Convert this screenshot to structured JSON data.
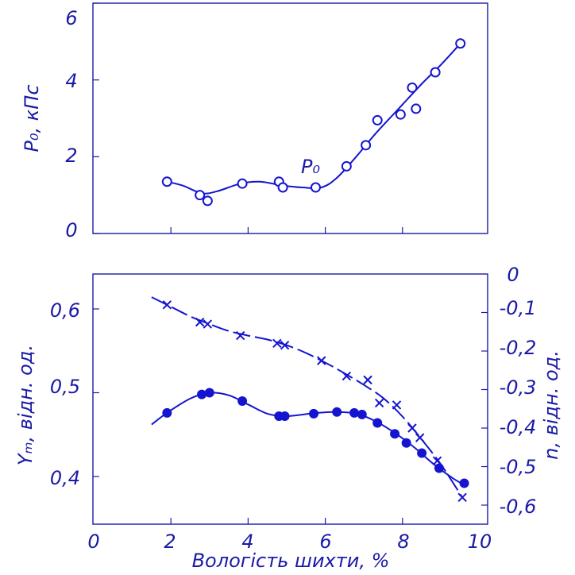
{
  "chart_data": [
    {
      "type": "line",
      "title": "",
      "xlabel": "",
      "ylabel": "P₀, кПс",
      "xlim": [
        0,
        10
      ],
      "ylim": [
        0,
        6
      ],
      "grid": false,
      "yticks": [
        "0",
        "2",
        "4",
        "6"
      ],
      "annotation": "P₀",
      "series": [
        {
          "name": "P₀",
          "marker": "open-circle",
          "points": [
            {
              "x": 1.9,
              "y": 1.35
            },
            {
              "x": 2.75,
              "y": 1.0
            },
            {
              "x": 2.95,
              "y": 0.85
            },
            {
              "x": 3.85,
              "y": 1.3
            },
            {
              "x": 4.8,
              "y": 1.35
            },
            {
              "x": 4.9,
              "y": 1.2
            },
            {
              "x": 5.75,
              "y": 1.2
            },
            {
              "x": 6.55,
              "y": 1.75
            },
            {
              "x": 7.05,
              "y": 2.3
            },
            {
              "x": 7.35,
              "y": 2.95
            },
            {
              "x": 7.95,
              "y": 3.1
            },
            {
              "x": 8.25,
              "y": 3.8
            },
            {
              "x": 8.35,
              "y": 3.25
            },
            {
              "x": 8.85,
              "y": 4.2
            },
            {
              "x": 9.5,
              "y": 4.95
            }
          ],
          "curve": [
            {
              "x": 1.9,
              "y": 1.35
            },
            {
              "x": 2.3,
              "y": 1.25
            },
            {
              "x": 2.8,
              "y": 1.05
            },
            {
              "x": 3.2,
              "y": 1.1
            },
            {
              "x": 3.8,
              "y": 1.3
            },
            {
              "x": 4.3,
              "y": 1.35
            },
            {
              "x": 4.9,
              "y": 1.25
            },
            {
              "x": 5.4,
              "y": 1.2
            },
            {
              "x": 5.9,
              "y": 1.2
            },
            {
              "x": 6.3,
              "y": 1.45
            },
            {
              "x": 6.8,
              "y": 2.0
            },
            {
              "x": 7.3,
              "y": 2.6
            },
            {
              "x": 7.9,
              "y": 3.25
            },
            {
              "x": 8.5,
              "y": 3.9
            },
            {
              "x": 9.0,
              "y": 4.4
            },
            {
              "x": 9.5,
              "y": 4.95
            }
          ]
        }
      ]
    },
    {
      "type": "line",
      "title": "",
      "xlabel": "Вологість шихти, %",
      "ylabel": "Yₘ, відн. од.",
      "y2label": "n, відн. од.",
      "xlim": [
        0,
        10
      ],
      "ylim": [
        0.36,
        0.64
      ],
      "y2lim": [
        -0.63,
        0
      ],
      "grid": false,
      "xticks": [
        "0",
        "2",
        "4",
        "6",
        "8",
        "10"
      ],
      "yticks": [
        "0,4",
        "0,5",
        "0,6"
      ],
      "y2ticks": [
        "0",
        "-0,1",
        "-0,2",
        "-0,3",
        "-0,4",
        "-0,5",
        "-0,6"
      ],
      "series": [
        {
          "name": "",
          "axis": "left",
          "marker": "filled-circle",
          "points": [
            {
              "x": 1.9,
              "y": 0.476
            },
            {
              "x": 2.8,
              "y": 0.498
            },
            {
              "x": 3.0,
              "y": 0.5
            },
            {
              "x": 3.85,
              "y": 0.49
            },
            {
              "x": 4.8,
              "y": 0.472
            },
            {
              "x": 4.95,
              "y": 0.472
            },
            {
              "x": 5.7,
              "y": 0.475
            },
            {
              "x": 6.3,
              "y": 0.477
            },
            {
              "x": 6.75,
              "y": 0.476
            },
            {
              "x": 6.95,
              "y": 0.474
            },
            {
              "x": 7.35,
              "y": 0.464
            },
            {
              "x": 7.8,
              "y": 0.451
            },
            {
              "x": 8.1,
              "y": 0.44
            },
            {
              "x": 8.5,
              "y": 0.428
            },
            {
              "x": 8.95,
              "y": 0.41
            },
            {
              "x": 9.6,
              "y": 0.392
            }
          ],
          "curve": [
            {
              "x": 1.5,
              "y": 0.462
            },
            {
              "x": 1.9,
              "y": 0.476
            },
            {
              "x": 2.5,
              "y": 0.493
            },
            {
              "x": 3.0,
              "y": 0.5
            },
            {
              "x": 3.5,
              "y": 0.497
            },
            {
              "x": 4.0,
              "y": 0.486
            },
            {
              "x": 4.5,
              "y": 0.475
            },
            {
              "x": 5.0,
              "y": 0.472
            },
            {
              "x": 5.6,
              "y": 0.475
            },
            {
              "x": 6.2,
              "y": 0.477
            },
            {
              "x": 6.8,
              "y": 0.475
            },
            {
              "x": 7.3,
              "y": 0.466
            },
            {
              "x": 7.8,
              "y": 0.452
            },
            {
              "x": 8.3,
              "y": 0.435
            },
            {
              "x": 8.8,
              "y": 0.415
            },
            {
              "x": 9.3,
              "y": 0.398
            },
            {
              "x": 9.6,
              "y": 0.39
            }
          ]
        },
        {
          "name": "",
          "axis": "right",
          "marker": "cross",
          "points": [
            {
              "x": 1.9,
              "y": -0.08
            },
            {
              "x": 2.75,
              "y": -0.125
            },
            {
              "x": 2.95,
              "y": -0.13
            },
            {
              "x": 3.8,
              "y": -0.16
            },
            {
              "x": 4.75,
              "y": -0.18
            },
            {
              "x": 4.95,
              "y": -0.185
            },
            {
              "x": 5.9,
              "y": -0.225
            },
            {
              "x": 6.55,
              "y": -0.265
            },
            {
              "x": 7.1,
              "y": -0.275
            },
            {
              "x": 7.4,
              "y": -0.335
            },
            {
              "x": 7.85,
              "y": -0.34
            },
            {
              "x": 8.25,
              "y": -0.4
            },
            {
              "x": 8.45,
              "y": -0.425
            },
            {
              "x": 8.9,
              "y": -0.485
            },
            {
              "x": 9.55,
              "y": -0.58
            }
          ],
          "curve": [
            {
              "x": 1.5,
              "y": -0.06
            },
            {
              "x": 2.0,
              "y": -0.085
            },
            {
              "x": 2.5,
              "y": -0.11
            },
            {
              "x": 3.0,
              "y": -0.13
            },
            {
              "x": 3.5,
              "y": -0.148
            },
            {
              "x": 4.0,
              "y": -0.16
            },
            {
              "x": 4.5,
              "y": -0.17
            },
            {
              "x": 5.0,
              "y": -0.185
            },
            {
              "x": 5.5,
              "y": -0.205
            },
            {
              "x": 6.0,
              "y": -0.23
            },
            {
              "x": 6.5,
              "y": -0.258
            },
            {
              "x": 7.0,
              "y": -0.288
            },
            {
              "x": 7.5,
              "y": -0.322
            },
            {
              "x": 8.0,
              "y": -0.37
            },
            {
              "x": 8.5,
              "y": -0.43
            },
            {
              "x": 9.0,
              "y": -0.495
            },
            {
              "x": 9.55,
              "y": -0.58
            }
          ]
        }
      ]
    }
  ]
}
